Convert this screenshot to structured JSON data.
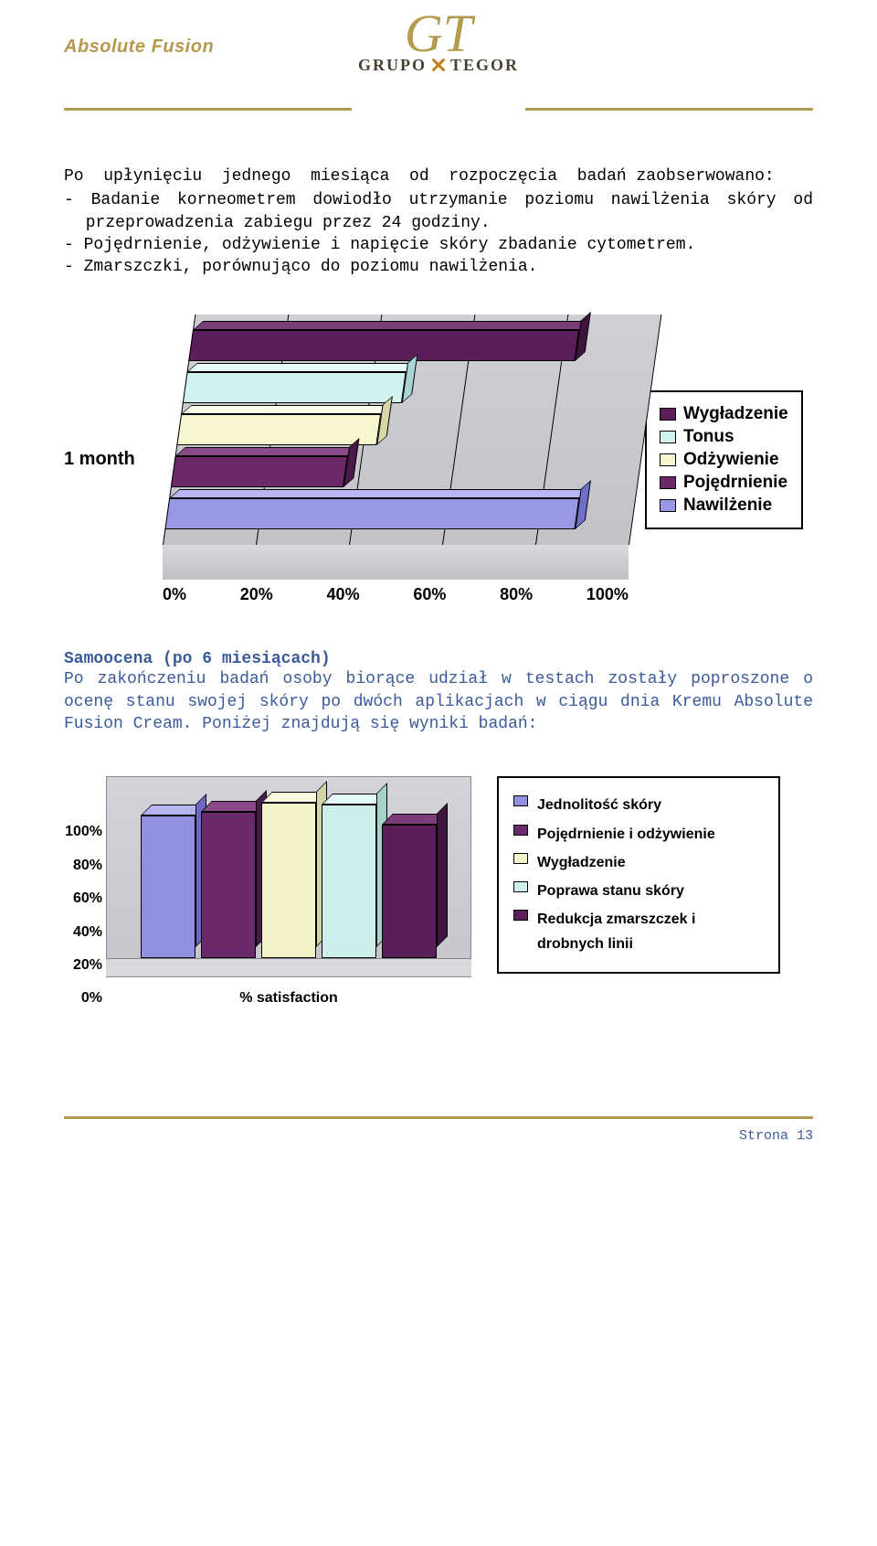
{
  "header": {
    "brand_left": "Absolute Fusion",
    "logo_monogram": "GT",
    "logo_text_left": "GRUPO",
    "logo_text_right": "TEGOR"
  },
  "intro": {
    "lead": "Po  upłynięciu  jednego  miesiąca  od  rozpoczęcia  badań zaobserwowano:",
    "bullets": [
      "- Badanie korneometrem dowiodło utrzymanie poziomu nawilżenia skóry od przeprowadzenia zabiegu przez 24 godziny.",
      "- Pojędrnienie,  odżywienie  i  napięcie  skóry zbadanie cytometrem.",
      "- Zmarszczki, porównująco do poziomu nawilżenia."
    ]
  },
  "chart1": {
    "type": "bar_horizontal_3d",
    "y_label": "1 month",
    "x_ticks": [
      "0%",
      "20%",
      "40%",
      "60%",
      "80%",
      "100%"
    ],
    "x_max": 100,
    "background_color": "#c9c9d0",
    "series": [
      {
        "label": "Wygładzenie",
        "value": 83,
        "color": "#5a1e5a",
        "color_top": "#7a3d7a",
        "color_side": "#3f153f"
      },
      {
        "label": "Tonus",
        "value": 47,
        "color": "#d2f2f0",
        "color_top": "#e6fbfa",
        "color_side": "#a9d6d4"
      },
      {
        "label": "Odżywienie",
        "value": 43,
        "color": "#f7f6cf",
        "color_top": "#fdfce6",
        "color_side": "#d8d7a8"
      },
      {
        "label": "Pojędrnienie",
        "value": 37,
        "color": "#6a2a6a",
        "color_top": "#8a4a8a",
        "color_side": "#4a1a4a"
      },
      {
        "label": "Nawilżenie",
        "value": 88,
        "color": "#9898e6",
        "color_top": "#b6b6f2",
        "color_side": "#6f6fc9"
      }
    ]
  },
  "section": {
    "heading": "Samoocena (po 6 miesiącach)",
    "para": "Po zakończeniu badań osoby biorące udział w testach zostały poproszone o ocenę stanu swojej skóry po dwóch aplikacjach w ciągu dnia Kremu Absolute Fusion Cream. Poniżej znajdują się wyniki badań:"
  },
  "chart2": {
    "type": "bar_vertical_3d",
    "y_ticks": [
      "100%",
      "80%",
      "60%",
      "40%",
      "20%",
      "0%"
    ],
    "y_max": 100,
    "x_label": "% satisfaction",
    "background_color": "#cfcfd6",
    "bars": [
      {
        "value": 78,
        "color": "#9090e0",
        "color_top": "#b4b4ef",
        "color_side": "#6a6ac4",
        "legend": "Jednolitość skóry"
      },
      {
        "value": 80,
        "color": "#6a2a6a",
        "color_top": "#8a4a8a",
        "color_side": "#4a1a4a",
        "legend": "Pojędrnienie i odżywienie"
      },
      {
        "value": 85,
        "color": "#f4f3c8",
        "color_top": "#fbfadf",
        "color_side": "#d4d3a4",
        "legend": "Wygładzenie"
      },
      {
        "value": 84,
        "color": "#cdeeea",
        "color_top": "#e4f8f5",
        "color_side": "#a4d2cd",
        "legend": "Poprawa stanu skóry"
      },
      {
        "value": 73,
        "color": "#5a1e5a",
        "color_top": "#7a3d7a",
        "color_side": "#3f153f",
        "legend": "Redukcja zmarszczek i drobnych linii"
      }
    ]
  },
  "footer": {
    "page": "Strona 13"
  }
}
